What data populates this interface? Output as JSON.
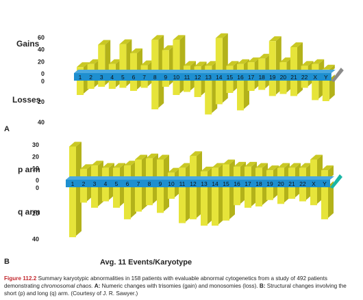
{
  "panel_a": {
    "label": "A",
    "gains_label": "Gains",
    "losses_label": "Losses"
  },
  "panel_b": {
    "label": "B",
    "p_label": "p arm",
    "q_label": "q arm",
    "footer": "Avg. 11 Events/Karyotype"
  },
  "caption": {
    "label": "Figure 112.2",
    "text_1": " Summary karyotypic abnormalities in 158 patients with evaluable abnormal cytogenetics from a study of 492 patients demonstrating ",
    "text_italic": "chromosomal chaos.",
    "a_label": " A:",
    "a_text": " Numeric changes with trisomies (gain) and monosomies (loss). ",
    "b_label": "B:",
    "b_text": " Structural changes involving the short (p) and long (q) arm. (Courtesy of J. R. Sawyer.)"
  },
  "colors": {
    "bar_front": "#e6e43a",
    "bar_top": "#c9c824",
    "bar_side": "#b3b21a",
    "axis_band": "#1e8fd0",
    "axis_tip_a": "#8a8a8a",
    "axis_tip_b": "#19b6a6",
    "caption_label": "#c2272d"
  },
  "chart_data": [
    {
      "type": "bar",
      "categories": [
        "1",
        "2",
        "3",
        "4",
        "5",
        "6",
        "7",
        "8",
        "9",
        "10",
        "11",
        "12",
        "13",
        "14",
        "15",
        "16",
        "17",
        "18",
        "19",
        "20",
        "21",
        "22",
        "X",
        "Y"
      ],
      "upper": {
        "name": "Gains",
        "ticks": [
          0,
          20,
          40,
          60
        ],
        "ylim": [
          0,
          60
        ],
        "values": [
          10,
          15,
          47,
          15,
          48,
          33,
          13,
          55,
          38,
          55,
          12,
          11,
          12,
          58,
          12,
          15,
          18,
          24,
          53,
          18,
          43,
          12,
          15,
          6
        ]
      },
      "lower": {
        "name": "Losses",
        "ticks": [
          0,
          20,
          40
        ],
        "ylim": [
          0,
          40
        ],
        "values": [
          14,
          8,
          6,
          8,
          7,
          10,
          7,
          28,
          6,
          14,
          11,
          16,
          33,
          23,
          12,
          29,
          10,
          9,
          15,
          13,
          15,
          7,
          19,
          20
        ]
      }
    },
    {
      "type": "bar",
      "categories": [
        "1",
        "2",
        "3",
        "4",
        "5",
        "6",
        "7",
        "8",
        "9",
        "10",
        "11",
        "12",
        "13",
        "14",
        "15",
        "16",
        "17",
        "18",
        "19",
        "20",
        "21",
        "22",
        "X",
        "Y"
      ],
      "upper": {
        "name": "p arm",
        "ticks": [
          0,
          10,
          20,
          30
        ],
        "ylim": [
          0,
          30
        ],
        "values": [
          28,
          9,
          12,
          10,
          10,
          12,
          17,
          18,
          17,
          6,
          10,
          20,
          7,
          10,
          13,
          11,
          11,
          10,
          8,
          10,
          10,
          10,
          17,
          8
        ]
      },
      "lower": {
        "name": "q arm",
        "ticks": [
          0,
          20,
          40
        ],
        "ylim": [
          0,
          40
        ],
        "values": [
          39,
          12,
          16,
          11,
          16,
          25,
          19,
          14,
          20,
          9,
          28,
          25,
          30,
          30,
          26,
          14,
          16,
          15,
          10,
          13,
          9,
          11,
          14,
          25
        ]
      }
    }
  ]
}
